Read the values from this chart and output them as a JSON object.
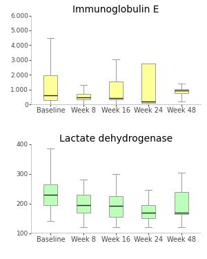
{
  "title1": "Immunoglobulin E",
  "title2": "Lactate dehydrogenase",
  "categories": [
    "Baseline",
    "Week 8",
    "Week 16",
    "Week 24",
    "Week 48"
  ],
  "ig_boxes": [
    {
      "whislo": 0,
      "q1": 300,
      "med": 600,
      "q3": 1950,
      "whishi": 4500
    },
    {
      "whislo": 0,
      "q1": 350,
      "med": 450,
      "q3": 700,
      "whishi": 1300
    },
    {
      "whislo": 0,
      "q1": 350,
      "med": 430,
      "q3": 1550,
      "whishi": 3050
    },
    {
      "whislo": 0,
      "q1": 100,
      "med": 200,
      "q3": 2750,
      "whishi": 2750
    },
    {
      "whislo": 200,
      "q1": 750,
      "med": 950,
      "q3": 1050,
      "whishi": 1400
    }
  ],
  "ldh_boxes": [
    {
      "whislo": 140,
      "q1": 195,
      "med": 230,
      "q3": 265,
      "whishi": 385
    },
    {
      "whislo": 120,
      "q1": 170,
      "med": 195,
      "q3": 230,
      "whishi": 280
    },
    {
      "whislo": 120,
      "q1": 155,
      "med": 192,
      "q3": 225,
      "whishi": 300
    },
    {
      "whislo": 120,
      "q1": 150,
      "med": 170,
      "q3": 195,
      "whishi": 245
    },
    {
      "whislo": 120,
      "q1": 165,
      "med": 170,
      "q3": 240,
      "whishi": 305
    }
  ],
  "ig_ylim": [
    0,
    6000
  ],
  "ig_yticks": [
    0,
    1000,
    2000,
    3000,
    4000,
    5000,
    6000
  ],
  "ldh_ylim": [
    100,
    400
  ],
  "ldh_yticks": [
    100,
    200,
    300,
    400
  ],
  "ig_color": "#FFFF99",
  "ldh_color": "#BBFFBB",
  "box_edge_color": "#999999",
  "median_color": "#222222",
  "whisker_color": "#999999",
  "cap_color": "#999999",
  "background_color": "#ffffff",
  "title_fontsize": 10,
  "tick_labelsize": 6.5,
  "xtick_labelsize": 7
}
